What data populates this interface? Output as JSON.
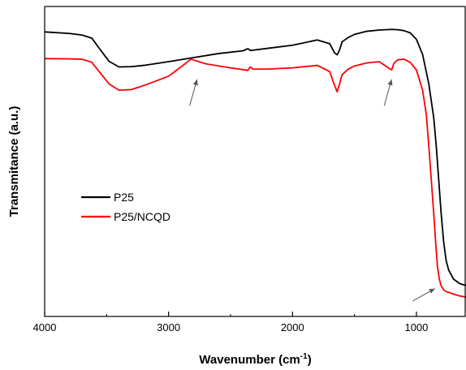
{
  "chart_data": {
    "type": "line",
    "xlabel": "Wavenumber (cm",
    "xlabel_superscript": "-1",
    "xlabel_suffix": ")",
    "ylabel": "Transmitance (a.u.)",
    "x_reversed": true,
    "xlim": [
      4000,
      600
    ],
    "ylim": [
      0,
      100
    ],
    "xticks": [
      4000,
      3000,
      2000,
      1000
    ],
    "grid": false,
    "legend_position": "center-left",
    "series": [
      {
        "name": "P25",
        "color": "#000000",
        "x": [
          4000,
          3800,
          3700,
          3620,
          3550,
          3480,
          3400,
          3300,
          3200,
          3000,
          2800,
          2600,
          2400,
          2360,
          2340,
          2200,
          2000,
          1800,
          1700,
          1660,
          1640,
          1620,
          1600,
          1550,
          1500,
          1400,
          1300,
          1200,
          1150,
          1100,
          1050,
          1000,
          950,
          900,
          860,
          840,
          820,
          800,
          780,
          760,
          740,
          700,
          650,
          620,
          600
        ],
        "y": [
          91.8,
          91.3,
          90.8,
          89.8,
          86.0,
          82.3,
          80.5,
          80.6,
          81.0,
          82.2,
          83.5,
          84.8,
          85.7,
          86.4,
          85.8,
          86.5,
          87.5,
          89.2,
          88.0,
          85.0,
          84.4,
          86.0,
          88.6,
          90.0,
          91.0,
          92.0,
          92.4,
          92.6,
          92.5,
          92.2,
          91.5,
          89.4,
          84.5,
          75.0,
          64.0,
          55.0,
          44.0,
          33.0,
          24.0,
          18.0,
          15.0,
          12.0,
          10.6,
          10.2,
          10.0
        ]
      },
      {
        "name": "P25/NCQD",
        "color": "#ff0000",
        "x": [
          4000,
          3800,
          3700,
          3620,
          3550,
          3480,
          3400,
          3300,
          3200,
          3000,
          2900,
          2820,
          2700,
          2500,
          2360,
          2340,
          2320,
          2200,
          2000,
          1800,
          1700,
          1660,
          1640,
          1620,
          1600,
          1550,
          1500,
          1400,
          1300,
          1220,
          1200,
          1180,
          1150,
          1100,
          1050,
          1000,
          950,
          920,
          900,
          880,
          860,
          845,
          830,
          815,
          800,
          780,
          760,
          740,
          700,
          650,
          620,
          600
        ],
        "y": [
          83.2,
          83.1,
          83.0,
          82.0,
          78.5,
          75.0,
          73.0,
          73.2,
          74.5,
          77.5,
          80.5,
          83.0,
          81.5,
          80.2,
          79.4,
          80.5,
          79.8,
          79.8,
          80.2,
          81.0,
          79.0,
          74.5,
          72.5,
          75.0,
          78.0,
          79.8,
          80.8,
          81.8,
          82.2,
          80.0,
          79.6,
          81.8,
          82.8,
          83.0,
          82.0,
          79.5,
          73.0,
          65.0,
          55.0,
          44.0,
          33.0,
          24.0,
          16.0,
          12.0,
          9.8,
          8.6,
          8.0,
          7.8,
          7.2,
          6.6,
          6.4,
          6.3
        ]
      }
    ],
    "annotations": [
      {
        "type": "arrow",
        "from": [
          2830,
          68.0
        ],
        "to": [
          2770,
          76.5
        ]
      },
      {
        "type": "arrow",
        "from": [
          1260,
          68.0
        ],
        "to": [
          1200,
          76.5
        ]
      },
      {
        "type": "arrow",
        "from": [
          1030,
          5.0
        ],
        "to": [
          850,
          9.0
        ]
      }
    ]
  }
}
